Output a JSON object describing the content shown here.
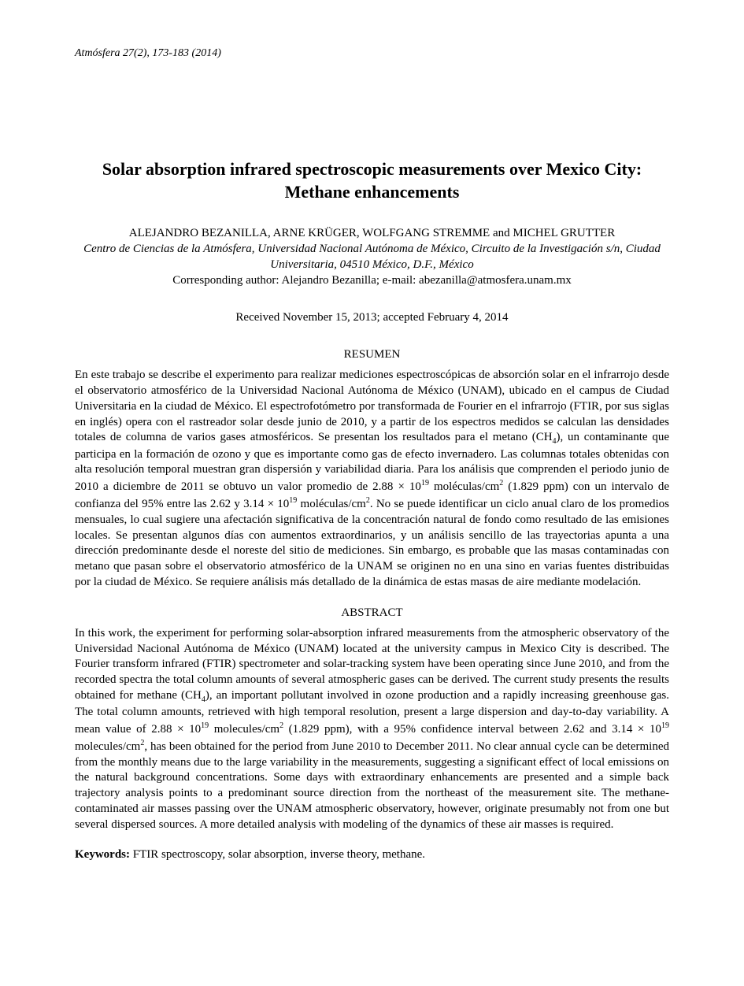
{
  "journal_header": "Atmósfera 27(2), 173-183 (2014)",
  "title": "Solar absorption infrared spectroscopic measurements over Mexico City: Methane enhancements",
  "authors": "ALEJANDRO BEZANILLA, ARNE KRÜGER, WOLFGANG STREMME and MICHEL GRUTTER",
  "affiliation": "Centro de Ciencias de la Atmósfera, Universidad Nacional Autónoma de México, Circuito de la Investigación s/n, Ciudad Universitaria, 04510 México, D.F., México",
  "corresponding": "Corresponding author: Alejandro Bezanilla; e-mail: abezanilla@atmosfera.unam.mx",
  "dates": "Received November 15, 2013; accepted February 4, 2014",
  "resumen_heading": "RESUMEN",
  "resumen_body": "En este trabajo se describe el experimento para realizar mediciones espectroscópicas de absorción solar en el infrarrojo desde el observatorio atmosférico de la Universidad Nacional Autónoma de México (UNAM), ubicado en el campus de Ciudad Universitaria en la ciudad de México. El espectrofotómetro por transformada de Fourier en el infrarrojo (FTIR, por sus siglas en inglés) opera con el rastreador solar desde junio de 2010, y a partir de los espectros medidos se calculan las densidades totales de columna de varios gases atmosféricos. Se presentan los resultados para el metano (CH₄), un contaminante que participa en la formación de ozono y que es importante como gas de efecto invernadero. Las columnas totales obtenidas con alta resolución temporal muestran gran dispersión y variabilidad diaria. Para los análisis que comprenden el periodo junio de 2010 a diciembre de 2011 se obtuvo un valor promedio de 2.88 × 10¹⁹ moléculas/cm² (1.829 ppm) con un intervalo de confianza del 95% entre las 2.62 y 3.14 × 10¹⁹ moléculas/cm². No se puede identificar un ciclo anual claro de los promedios mensuales, lo cual sugiere una afectación significativa de la concentración natural de fondo como resultado de las emisiones locales. Se presentan algunos días con aumentos extraordinarios, y un análisis sencillo de las trayectorias apunta a una dirección predominante desde el noreste del sitio de mediciones. Sin embargo, es probable que las masas contaminadas con metano que pasan sobre el observatorio atmosférico de la UNAM se originen no en una sino en varias fuentes distribuidas por la ciudad de México. Se requiere análisis más detallado de la dinámica de estas masas de aire mediante modelación.",
  "abstract_heading": "ABSTRACT",
  "abstract_body": "In this work, the experiment for performing solar-absorption infrared measurements from the atmospheric observatory of the Universidad Nacional Autónoma de México (UNAM) located at the university campus in Mexico City is described. The Fourier transform infrared (FTIR) spectrometer and solar-tracking system have been operating since June 2010, and from the recorded spectra the total column amounts of several atmospheric gases can be derived. The current study presents the results obtained for methane (CH₄), an important pollutant involved in ozone production and a rapidly increasing greenhouse gas. The total column amounts, retrieved with high temporal resolution, present a large dispersion and day-to-day variability. A mean value of 2.88 × 10¹⁹ molecules/cm² (1.829 ppm), with a 95% confidence interval between 2.62 and 3.14 × 10¹⁹ molecules/cm², has been obtained for the period from June 2010 to December 2011. No clear annual cycle can be determined from the monthly means due to the large variability in the measurements, suggesting a significant effect of local emissions on the natural background concentrations. Some days with extraordinary enhancements are presented and a simple back trajectory analysis points to a predominant source direction from the northeast of the measurement site. The methane-contaminated air masses passing over the UNAM atmospheric observatory, however, originate presumably not from one but several dispersed sources. A more detailed analysis with modeling of the dynamics of these air masses is required.",
  "keywords_label": "Keywords:",
  "keywords_text": " FTIR spectroscopy, solar absorption, inverse theory, methane."
}
